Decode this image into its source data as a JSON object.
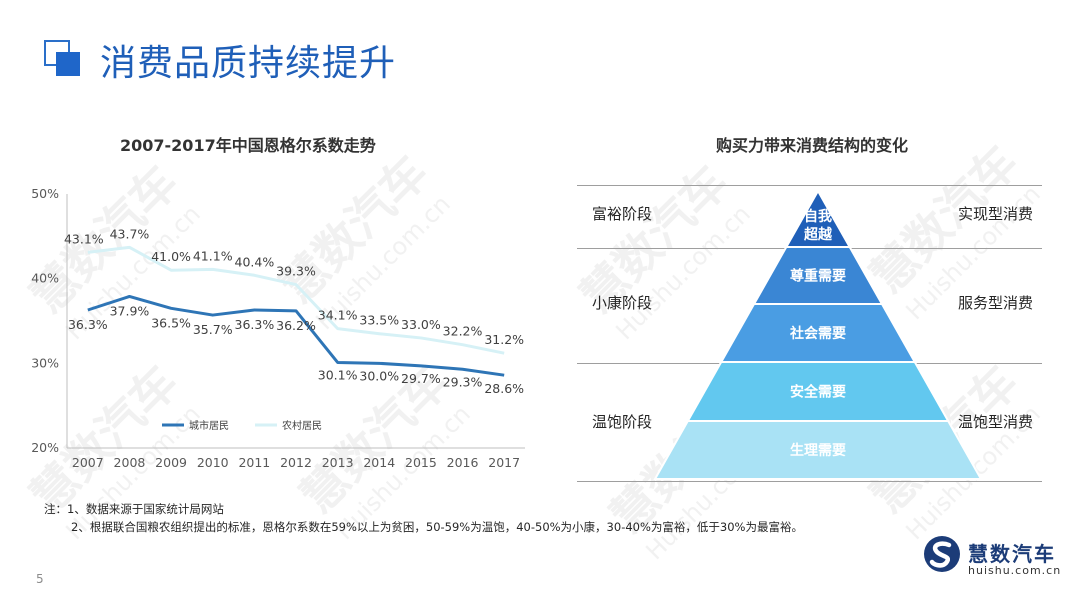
{
  "page": {
    "title": "消费品质持续提升",
    "page_number": "5"
  },
  "watermark": {
    "text": "慧数汽车",
    "url": "Huishu.com.cn"
  },
  "chart_title": "2007-2017年中国恩格尔系数走势",
  "chart_data": {
    "type": "line",
    "x": [
      "2007",
      "2008",
      "2009",
      "2010",
      "2011",
      "2012",
      "2013",
      "2014",
      "2015",
      "2016",
      "2017"
    ],
    "series": [
      {
        "name": "城市居民",
        "color": "#2e75b6",
        "values": [
          36.3,
          37.9,
          36.5,
          35.7,
          36.3,
          36.2,
          30.1,
          30.0,
          29.7,
          29.3,
          28.6
        ]
      },
      {
        "name": "农村居民",
        "color": "#d6f1f6",
        "values": [
          43.1,
          43.7,
          41.0,
          41.1,
          40.4,
          39.3,
          34.1,
          33.5,
          33.0,
          32.2,
          31.2
        ]
      }
    ],
    "yticks": [
      "20%",
      "30%",
      "40%",
      "50%"
    ],
    "ylim": [
      20,
      50
    ],
    "legend": "bottom-left inside plot"
  },
  "pyramid": {
    "title": "购买力带来消费结构的变化",
    "levels": [
      {
        "label": "自我超越",
        "color": "#1f5fb8"
      },
      {
        "label": "尊重需要",
        "color": "#3a86d4"
      },
      {
        "label": "社会需要",
        "color": "#4a9de3"
      },
      {
        "label": "安全需要",
        "color": "#62c8ef"
      },
      {
        "label": "生理需要",
        "color": "#a9e2f5"
      }
    ],
    "stages": [
      "富裕阶段",
      "小康阶段",
      "温饱阶段"
    ],
    "types": [
      "实现型消费",
      "服务型消费",
      "温饱型消费"
    ]
  },
  "notes": {
    "line1": "注：1、数据来源于国家统计局网站",
    "line2": "2、根据联合国粮农组织提出的标准，恩格尔系数在59%以上为贫困，50-59%为温饱，40-50%为小康，30-40%为富裕，低于30%为最富裕。"
  },
  "brand": {
    "name": "慧数汽车",
    "url": "huishu.com.cn"
  }
}
